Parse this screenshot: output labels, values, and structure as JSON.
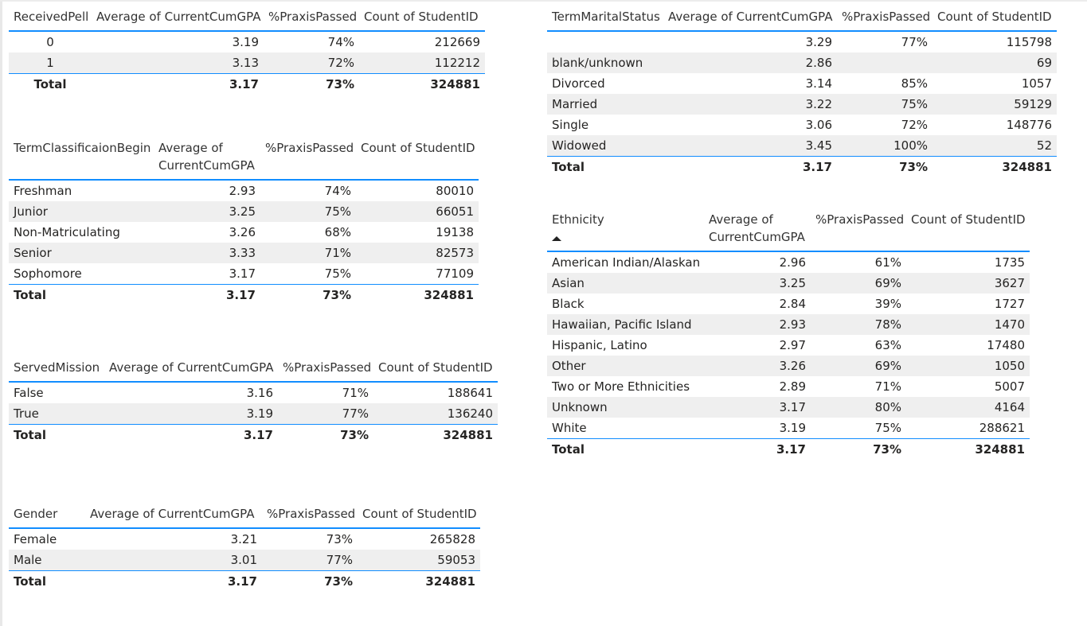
{
  "pell": {
    "headers": [
      "ReceivedPell",
      "Average of CurrentCumGPA",
      "%PraxisPassed",
      "Count of StudentID"
    ],
    "rows": [
      [
        "0",
        "3.19",
        "74%",
        "212669"
      ],
      [
        "1",
        "3.13",
        "72%",
        "112212"
      ]
    ],
    "total": [
      "Total",
      "3.17",
      "73%",
      "324881"
    ]
  },
  "classification": {
    "headers": [
      "TermClassificaionBegin",
      "Average of CurrentCumGPA",
      "%PraxisPassed",
      "Count of StudentID"
    ],
    "rows": [
      [
        "Freshman",
        "2.93",
        "74%",
        "80010"
      ],
      [
        "Junior",
        "3.25",
        "75%",
        "66051"
      ],
      [
        "Non-Matriculating",
        "3.26",
        "68%",
        "19138"
      ],
      [
        "Senior",
        "3.33",
        "71%",
        "82573"
      ],
      [
        "Sophomore",
        "3.17",
        "75%",
        "77109"
      ]
    ],
    "total": [
      "Total",
      "3.17",
      "73%",
      "324881"
    ]
  },
  "mission": {
    "headers": [
      "ServedMission",
      "Average of CurrentCumGPA",
      "%PraxisPassed",
      "Count of StudentID"
    ],
    "rows": [
      [
        "False",
        "3.16",
        "71%",
        "188641"
      ],
      [
        "True",
        "3.19",
        "77%",
        "136240"
      ]
    ],
    "total": [
      "Total",
      "3.17",
      "73%",
      "324881"
    ]
  },
  "gender": {
    "headers": [
      "Gender",
      "Average of CurrentCumGPA",
      "%PraxisPassed",
      "Count of StudentID"
    ],
    "rows": [
      [
        "Female",
        "3.21",
        "73%",
        "265828"
      ],
      [
        "Male",
        "3.01",
        "77%",
        "59053"
      ]
    ],
    "total": [
      "Total",
      "3.17",
      "73%",
      "324881"
    ]
  },
  "marital": {
    "headers": [
      "TermMaritalStatus",
      "Average of CurrentCumGPA",
      "%PraxisPassed",
      "Count of StudentID"
    ],
    "rows": [
      [
        "",
        "3.29",
        "77%",
        "115798"
      ],
      [
        "blank/unknown",
        "2.86",
        "",
        "69"
      ],
      [
        "Divorced",
        "3.14",
        "85%",
        "1057"
      ],
      [
        "Married",
        "3.22",
        "75%",
        "59129"
      ],
      [
        "Single",
        "3.06",
        "72%",
        "148776"
      ],
      [
        "Widowed",
        "3.45",
        "100%",
        "52"
      ]
    ],
    "total": [
      "Total",
      "3.17",
      "73%",
      "324881"
    ]
  },
  "ethnicity": {
    "headers": [
      "Ethnicity",
      "Average of CurrentCumGPA",
      "%PraxisPassed",
      "Count of StudentID"
    ],
    "sort_icon": "sort-ascending-icon",
    "rows": [
      [
        "American Indian/Alaskan",
        "2.96",
        "61%",
        "1735"
      ],
      [
        "Asian",
        "3.25",
        "69%",
        "3627"
      ],
      [
        "Black",
        "2.84",
        "39%",
        "1727"
      ],
      [
        "Hawaiian, Pacific Island",
        "2.93",
        "78%",
        "1470"
      ],
      [
        "Hispanic, Latino",
        "2.97",
        "63%",
        "17480"
      ],
      [
        "Other",
        "3.26",
        "69%",
        "1050"
      ],
      [
        "Two or More Ethnicities",
        "2.89",
        "71%",
        "5007"
      ],
      [
        "Unknown",
        "3.17",
        "80%",
        "4164"
      ],
      [
        "White",
        "3.19",
        "75%",
        "288621"
      ]
    ],
    "total": [
      "Total",
      "3.17",
      "73%",
      "324881"
    ]
  },
  "colors": {
    "accent": "#118DFF",
    "band": "#efefef"
  }
}
